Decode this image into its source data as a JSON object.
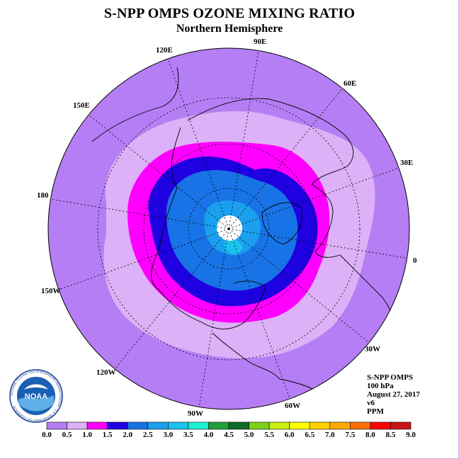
{
  "header": {
    "title": "S-NPP OMPS OZONE MIXING RATIO",
    "subtitle": "Northern Hemisphere"
  },
  "longitude_labels": {
    "lon_120e": "120E",
    "lon_90e": "90E",
    "lon_60e": "60E",
    "lon_150e": "150E",
    "lon_30e": "30E",
    "lon_180": "180",
    "lon_0": "0",
    "lon_150w": "150W",
    "lon_30w": "30W",
    "lon_120w": "120W",
    "lon_60w": "60W",
    "lon_90w": "90W"
  },
  "info": {
    "instrument": "S-NPP OMPS",
    "level": "100 hPa",
    "date": "August 27, 2017",
    "version": "v6",
    "units": "PPM"
  },
  "logo": {
    "text": "NOAA",
    "ring_text": "NATIONAL OCEANIC AND ATMOSPHERIC ADMINISTRATION · U.S. DEPARTMENT OF COMMERCE"
  },
  "colorbar": {
    "labels": [
      "0.0",
      "0.5",
      "1.0",
      "1.5",
      "2.0",
      "2.5",
      "3.0",
      "3.5",
      "4.0",
      "4.5",
      "5.0",
      "5.5",
      "6.0",
      "6.5",
      "7.0",
      "7.5",
      "8.0",
      "8.5",
      "9.0"
    ],
    "colors": [
      "#b57ef4",
      "#dcb1f7",
      "#ff00ff",
      "#1e00e0",
      "#1873e6",
      "#1aa0ee",
      "#1ac2ee",
      "#1ef0d2",
      "#1ea03a",
      "#0c6a2a",
      "#7cd216",
      "#c8f014",
      "#ffff00",
      "#ffd200",
      "#ffa800",
      "#ff6e00",
      "#ff0000",
      "#c81414",
      "#8c5a32"
    ]
  },
  "map_colors": {
    "outer": "#b57ef4",
    "band_0_5": "#dcb1f7",
    "band_1_0": "#ff00ff",
    "band_1_5": "#1e00e0",
    "band_2_0": "#1873e6",
    "band_2_5": "#1aa0ee",
    "pole_fill": "#ffffff"
  }
}
